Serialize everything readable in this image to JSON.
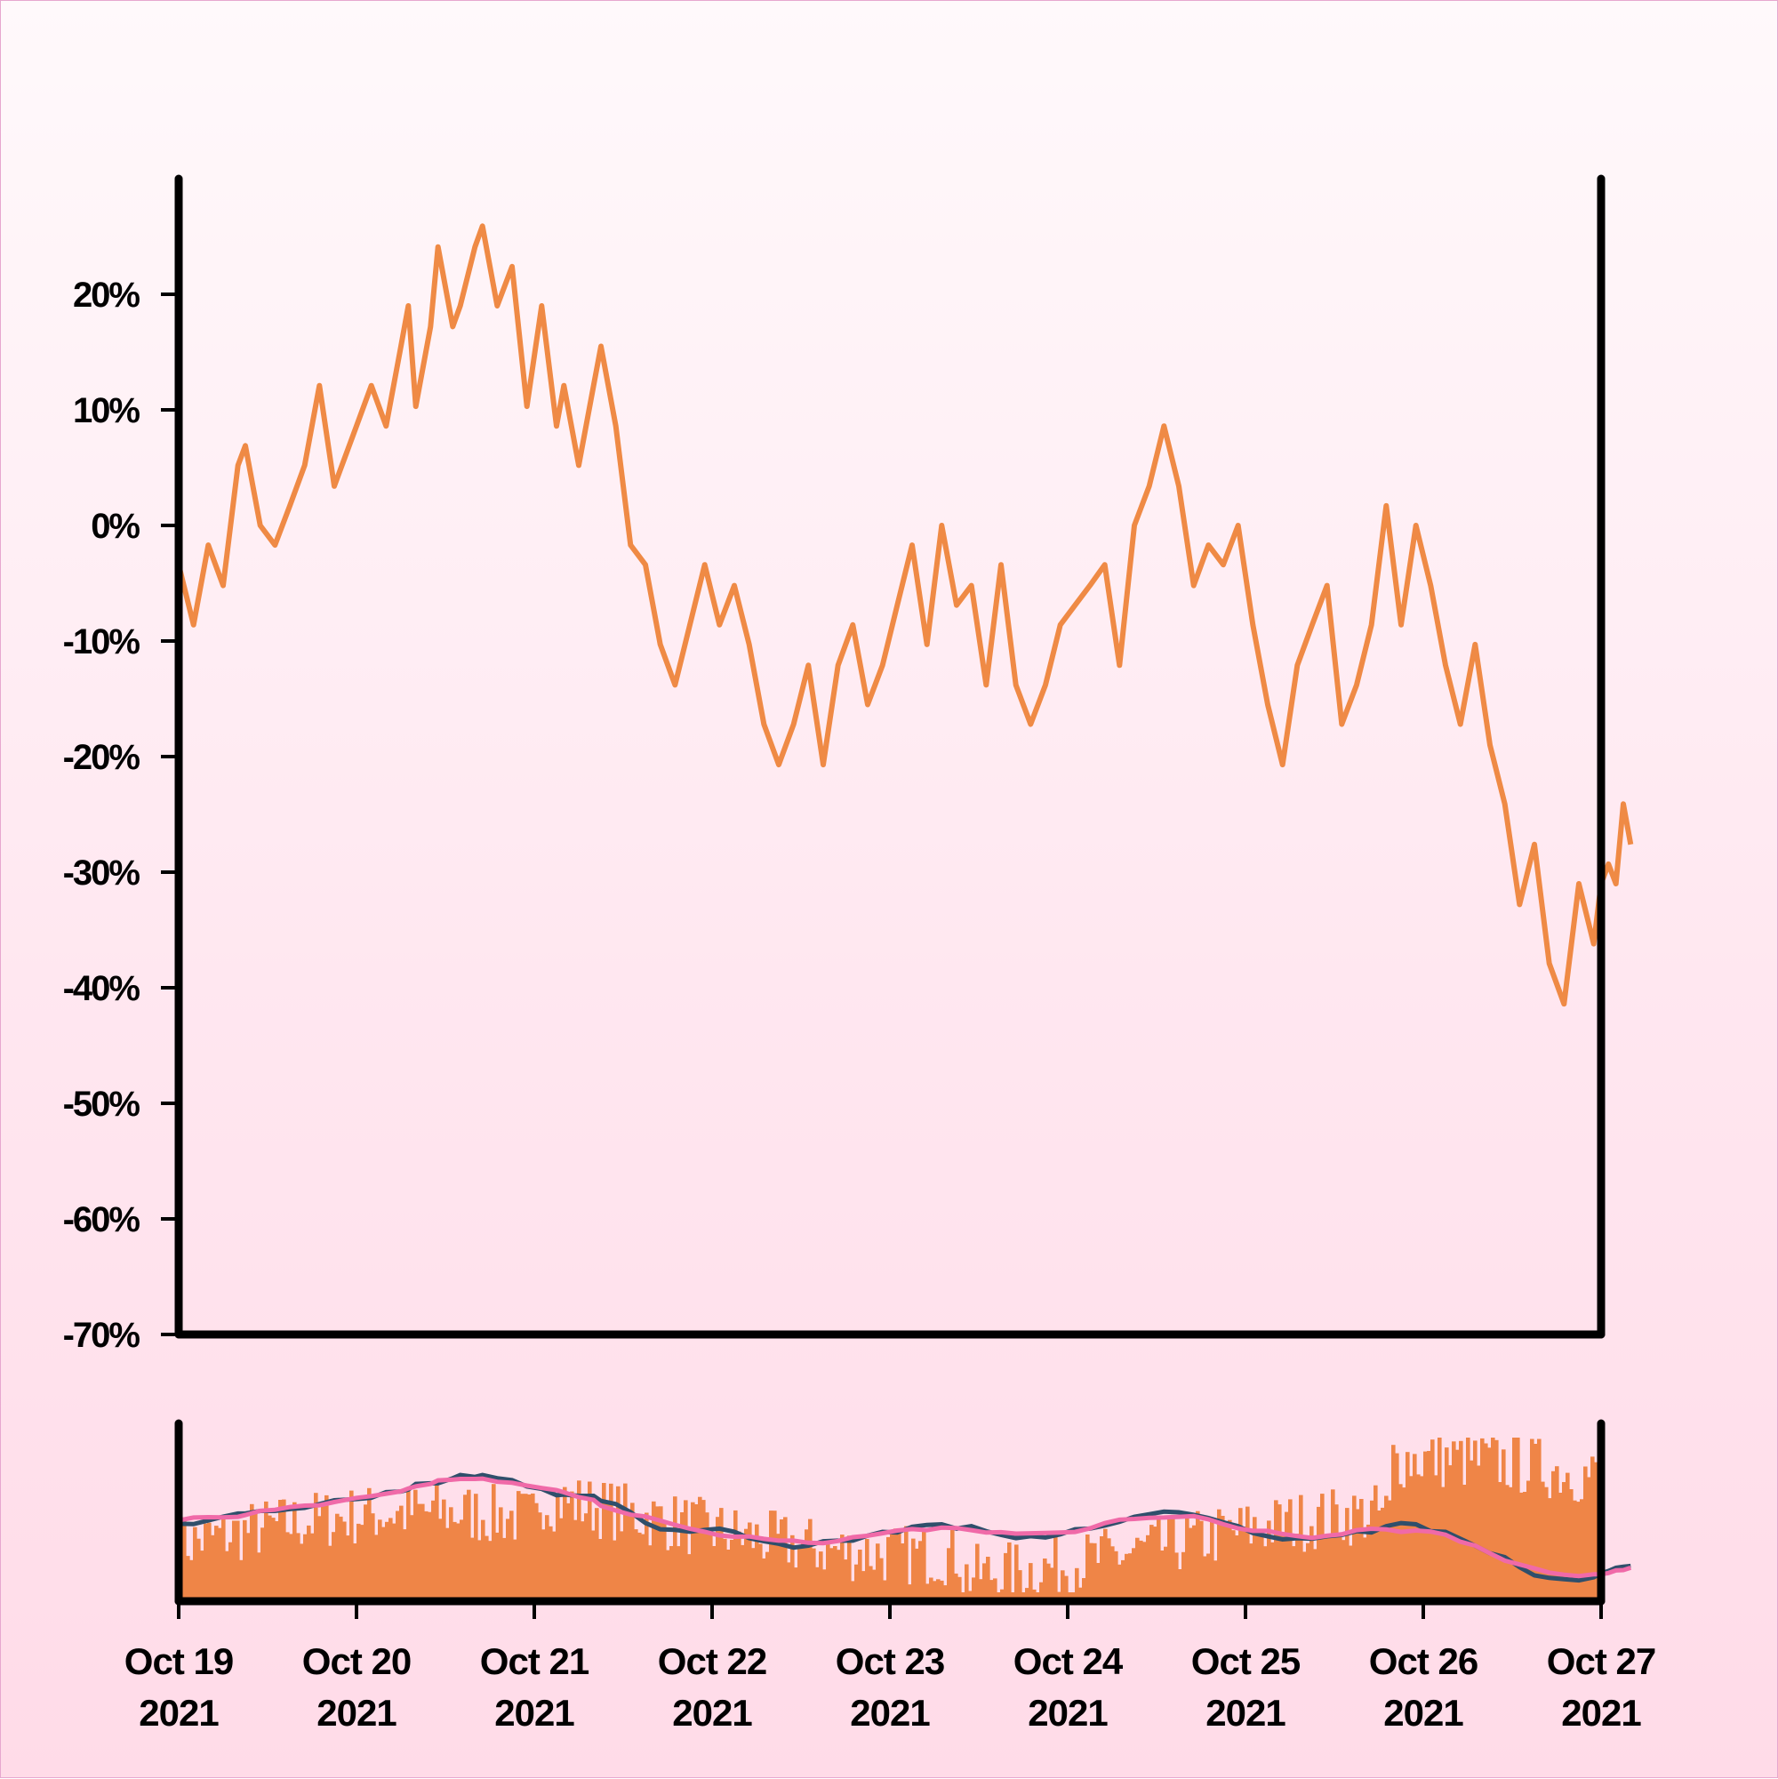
{
  "chart_data": [
    {
      "type": "line",
      "name": "price-change",
      "y_tick_labels": [
        "20%",
        "10%",
        "0%",
        "-10%",
        "-20%",
        "-30%",
        "-40%",
        "-50%",
        "-60%",
        "-70%"
      ],
      "y_ticks": [
        20,
        10,
        0,
        -10,
        -20,
        -30,
        -40,
        -50,
        -60,
        -70
      ],
      "ylim": [
        -70,
        30
      ],
      "x_tick_labels": [
        [
          "Oct 19",
          "2021"
        ],
        [
          "Oct 20",
          "2021"
        ],
        [
          "Oct 21",
          "2021"
        ],
        [
          "Oct 22",
          "2021"
        ],
        [
          "Oct 23",
          "2021"
        ],
        [
          "Oct 24",
          "2021"
        ],
        [
          "Oct 25",
          "2021"
        ],
        [
          "Oct 26",
          "2021"
        ],
        [
          "Oct 27",
          "2021"
        ]
      ],
      "x_ticks": [
        "2021-10-19",
        "2021-10-20",
        "2021-10-21",
        "2021-10-22",
        "2021-10-23",
        "2021-10-24",
        "2021-10-25",
        "2021-10-26",
        "2021-10-27"
      ],
      "xlim": [
        "2021-10-19",
        "2021-10-27"
      ],
      "grid": false,
      "line_color": "#ef8a45",
      "points": [
        [
          "2021-10-19 00:00",
          -3.4
        ],
        [
          "2021-10-19 02:00",
          -8.6
        ],
        [
          "2021-10-19 04:00",
          -1.7
        ],
        [
          "2021-10-19 06:00",
          -5.2
        ],
        [
          "2021-10-19 08:00",
          5.2
        ],
        [
          "2021-10-19 09:00",
          6.9
        ],
        [
          "2021-10-19 11:00",
          0.0
        ],
        [
          "2021-10-19 13:00",
          -1.7
        ],
        [
          "2021-10-19 15:00",
          1.7
        ],
        [
          "2021-10-19 17:00",
          5.2
        ],
        [
          "2021-10-19 19:00",
          12.1
        ],
        [
          "2021-10-19 21:00",
          3.4
        ],
        [
          "2021-10-20 00:00",
          8.6
        ],
        [
          "2021-10-20 02:00",
          12.1
        ],
        [
          "2021-10-20 04:00",
          8.6
        ],
        [
          "2021-10-20 06:00",
          15.5
        ],
        [
          "2021-10-20 07:00",
          19.0
        ],
        [
          "2021-10-20 08:00",
          10.3
        ],
        [
          "2021-10-20 10:00",
          17.2
        ],
        [
          "2021-10-20 11:00",
          24.1
        ],
        [
          "2021-10-20 13:00",
          17.2
        ],
        [
          "2021-10-20 14:00",
          19.0
        ],
        [
          "2021-10-20 16:00",
          24.1
        ],
        [
          "2021-10-20 17:00",
          25.9
        ],
        [
          "2021-10-20 19:00",
          19.0
        ],
        [
          "2021-10-20 21:00",
          22.4
        ],
        [
          "2021-10-20 23:00",
          10.3
        ],
        [
          "2021-10-21 01:00",
          19.0
        ],
        [
          "2021-10-21 03:00",
          8.6
        ],
        [
          "2021-10-21 04:00",
          12.1
        ],
        [
          "2021-10-21 06:00",
          5.2
        ],
        [
          "2021-10-21 08:00",
          12.1
        ],
        [
          "2021-10-21 09:00",
          15.5
        ],
        [
          "2021-10-21 11:00",
          8.6
        ],
        [
          "2021-10-21 13:00",
          -1.7
        ],
        [
          "2021-10-21 15:00",
          -3.4
        ],
        [
          "2021-10-21 17:00",
          -10.3
        ],
        [
          "2021-10-21 19:00",
          -13.8
        ],
        [
          "2021-10-21 21:00",
          -8.6
        ],
        [
          "2021-10-21 23:00",
          -3.4
        ],
        [
          "2021-10-22 01:00",
          -8.6
        ],
        [
          "2021-10-22 03:00",
          -5.2
        ],
        [
          "2021-10-22 05:00",
          -10.3
        ],
        [
          "2021-10-22 07:00",
          -17.2
        ],
        [
          "2021-10-22 09:00",
          -20.7
        ],
        [
          "2021-10-22 11:00",
          -17.2
        ],
        [
          "2021-10-22 13:00",
          -12.1
        ],
        [
          "2021-10-22 15:00",
          -20.7
        ],
        [
          "2021-10-22 17:00",
          -12.1
        ],
        [
          "2021-10-22 19:00",
          -8.6
        ],
        [
          "2021-10-22 21:00",
          -15.5
        ],
        [
          "2021-10-22 23:00",
          -12.1
        ],
        [
          "2021-10-23 01:00",
          -6.9
        ],
        [
          "2021-10-23 03:00",
          -1.7
        ],
        [
          "2021-10-23 05:00",
          -10.3
        ],
        [
          "2021-10-23 07:00",
          0.0
        ],
        [
          "2021-10-23 09:00",
          -6.9
        ],
        [
          "2021-10-23 11:00",
          -5.2
        ],
        [
          "2021-10-23 13:00",
          -13.8
        ],
        [
          "2021-10-23 15:00",
          -3.4
        ],
        [
          "2021-10-23 17:00",
          -13.8
        ],
        [
          "2021-10-23 19:00",
          -17.2
        ],
        [
          "2021-10-23 21:00",
          -13.8
        ],
        [
          "2021-10-23 23:00",
          -8.6
        ],
        [
          "2021-10-24 01:00",
          -6.9
        ],
        [
          "2021-10-24 03:00",
          -5.2
        ],
        [
          "2021-10-24 05:00",
          -3.4
        ],
        [
          "2021-10-24 07:00",
          -12.1
        ],
        [
          "2021-10-24 09:00",
          0.0
        ],
        [
          "2021-10-24 11:00",
          3.4
        ],
        [
          "2021-10-24 13:00",
          8.6
        ],
        [
          "2021-10-24 15:00",
          3.4
        ],
        [
          "2021-10-24 17:00",
          -5.2
        ],
        [
          "2021-10-24 19:00",
          -1.7
        ],
        [
          "2021-10-24 21:00",
          -3.4
        ],
        [
          "2021-10-24 23:00",
          0.0
        ],
        [
          "2021-10-25 01:00",
          -8.6
        ],
        [
          "2021-10-25 03:00",
          -15.5
        ],
        [
          "2021-10-25 05:00",
          -20.7
        ],
        [
          "2021-10-25 07:00",
          -12.1
        ],
        [
          "2021-10-25 09:00",
          -8.6
        ],
        [
          "2021-10-25 11:00",
          -5.2
        ],
        [
          "2021-10-25 13:00",
          -17.2
        ],
        [
          "2021-10-25 15:00",
          -13.8
        ],
        [
          "2021-10-25 17:00",
          -8.6
        ],
        [
          "2021-10-25 19:00",
          1.7
        ],
        [
          "2021-10-25 21:00",
          -8.6
        ],
        [
          "2021-10-25 23:00",
          0.0
        ],
        [
          "2021-10-26 01:00",
          -5.2
        ],
        [
          "2021-10-26 03:00",
          -12.1
        ],
        [
          "2021-10-26 05:00",
          -17.2
        ],
        [
          "2021-10-26 07:00",
          -10.3
        ],
        [
          "2021-10-26 09:00",
          -19.0
        ],
        [
          "2021-10-26 11:00",
          -24.1
        ],
        [
          "2021-10-26 13:00",
          -32.8
        ],
        [
          "2021-10-26 15:00",
          -27.6
        ],
        [
          "2021-10-26 17:00",
          -37.9
        ],
        [
          "2021-10-26 19:00",
          -41.4
        ],
        [
          "2021-10-26 21:00",
          -31.0
        ],
        [
          "2021-10-26 23:00",
          -36.2
        ],
        [
          "2021-10-27 00:00",
          -31.0
        ],
        [
          "2021-10-27 01:00",
          -29.3
        ],
        [
          "2021-10-27 02:00",
          -31.0
        ],
        [
          "2021-10-27 03:00",
          -24.1
        ],
        [
          "2021-10-27 04:00",
          -27.6
        ]
      ]
    },
    {
      "type": "bar+line",
      "name": "volume-and-moving-averages",
      "xlim": [
        "2021-10-19",
        "2021-10-27"
      ],
      "bar_color": "#ef8547",
      "series": [
        {
          "name": "",
          "color": "#2f4f6b",
          "kind": "line"
        },
        {
          "name": "",
          "color": "#f06aa8",
          "kind": "line"
        }
      ]
    }
  ]
}
